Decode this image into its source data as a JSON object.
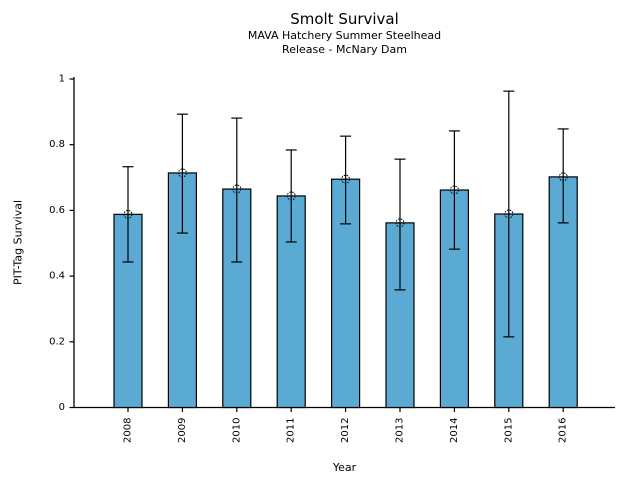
{
  "chart_data": {
    "type": "bar",
    "title": "Smolt Survival",
    "subtitle_line1": "MAVA Hatchery Summer Steelhead",
    "subtitle_line2": "Release - McNary Dam",
    "xlabel": "Year",
    "ylabel": "PIT-Tag Survival",
    "categories": [
      "2008",
      "2009",
      "2010",
      "2011",
      "2012",
      "2013",
      "2014",
      "2015",
      "2016"
    ],
    "values": [
      0.588,
      0.714,
      0.665,
      0.644,
      0.695,
      0.562,
      0.662,
      0.589,
      0.702
    ],
    "error_low": [
      0.443,
      0.531,
      0.443,
      0.504,
      0.559,
      0.358,
      0.482,
      0.215,
      0.562
    ],
    "error_high": [
      0.733,
      0.893,
      0.881,
      0.784,
      0.826,
      0.756,
      0.842,
      0.963,
      0.848
    ],
    "ylim": [
      0,
      1
    ],
    "yticks": [
      0,
      0.2,
      0.4,
      0.6,
      0.8,
      1
    ],
    "ytick_labels": [
      "0",
      "0.2",
      "0.4",
      "0.6",
      "0.8",
      "1"
    ],
    "grid": false,
    "legend": "none",
    "marker": "dotted-circle-plus",
    "colors": {
      "bar_fill": "#5BAAD4",
      "bar_edge": "#000000",
      "error_bar": "#000000",
      "axis": "#000000",
      "text": "#000000"
    }
  }
}
